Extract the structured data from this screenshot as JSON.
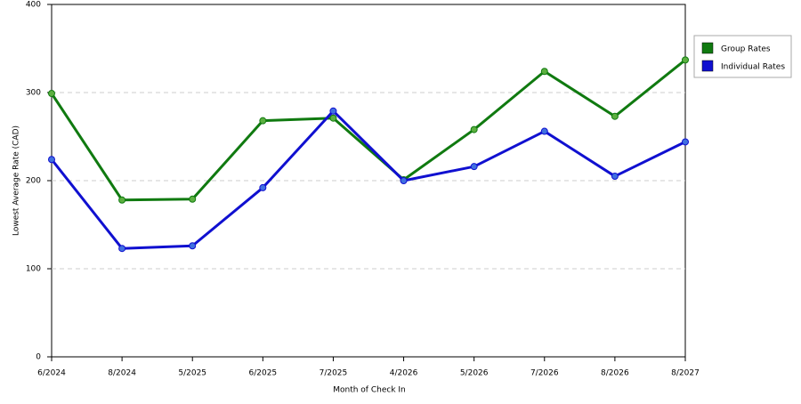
{
  "chart_data": {
    "type": "line",
    "x_label": "Month of Check In",
    "y_label": "Lowest Average Rate (CAD)",
    "categories": [
      "6/2024",
      "8/2024",
      "5/2025",
      "6/2025",
      "7/2025",
      "4/2026",
      "5/2026",
      "7/2026",
      "8/2026",
      "8/2027"
    ],
    "series": [
      {
        "name": "Group Rates",
        "color": "#107a10",
        "marker_color": "#5cb040",
        "values": [
          299,
          178,
          179,
          268,
          271,
          201,
          258,
          324,
          273,
          337
        ]
      },
      {
        "name": "Individual Rates",
        "color": "#1010d0",
        "marker_color": "#4070e0",
        "values": [
          224,
          123,
          126,
          192,
          279,
          200,
          216,
          256,
          205,
          244
        ]
      }
    ],
    "ylim": [
      0,
      400
    ],
    "yticks": [
      0,
      100,
      200,
      300,
      400
    ],
    "grid": true,
    "legend": "right"
  }
}
